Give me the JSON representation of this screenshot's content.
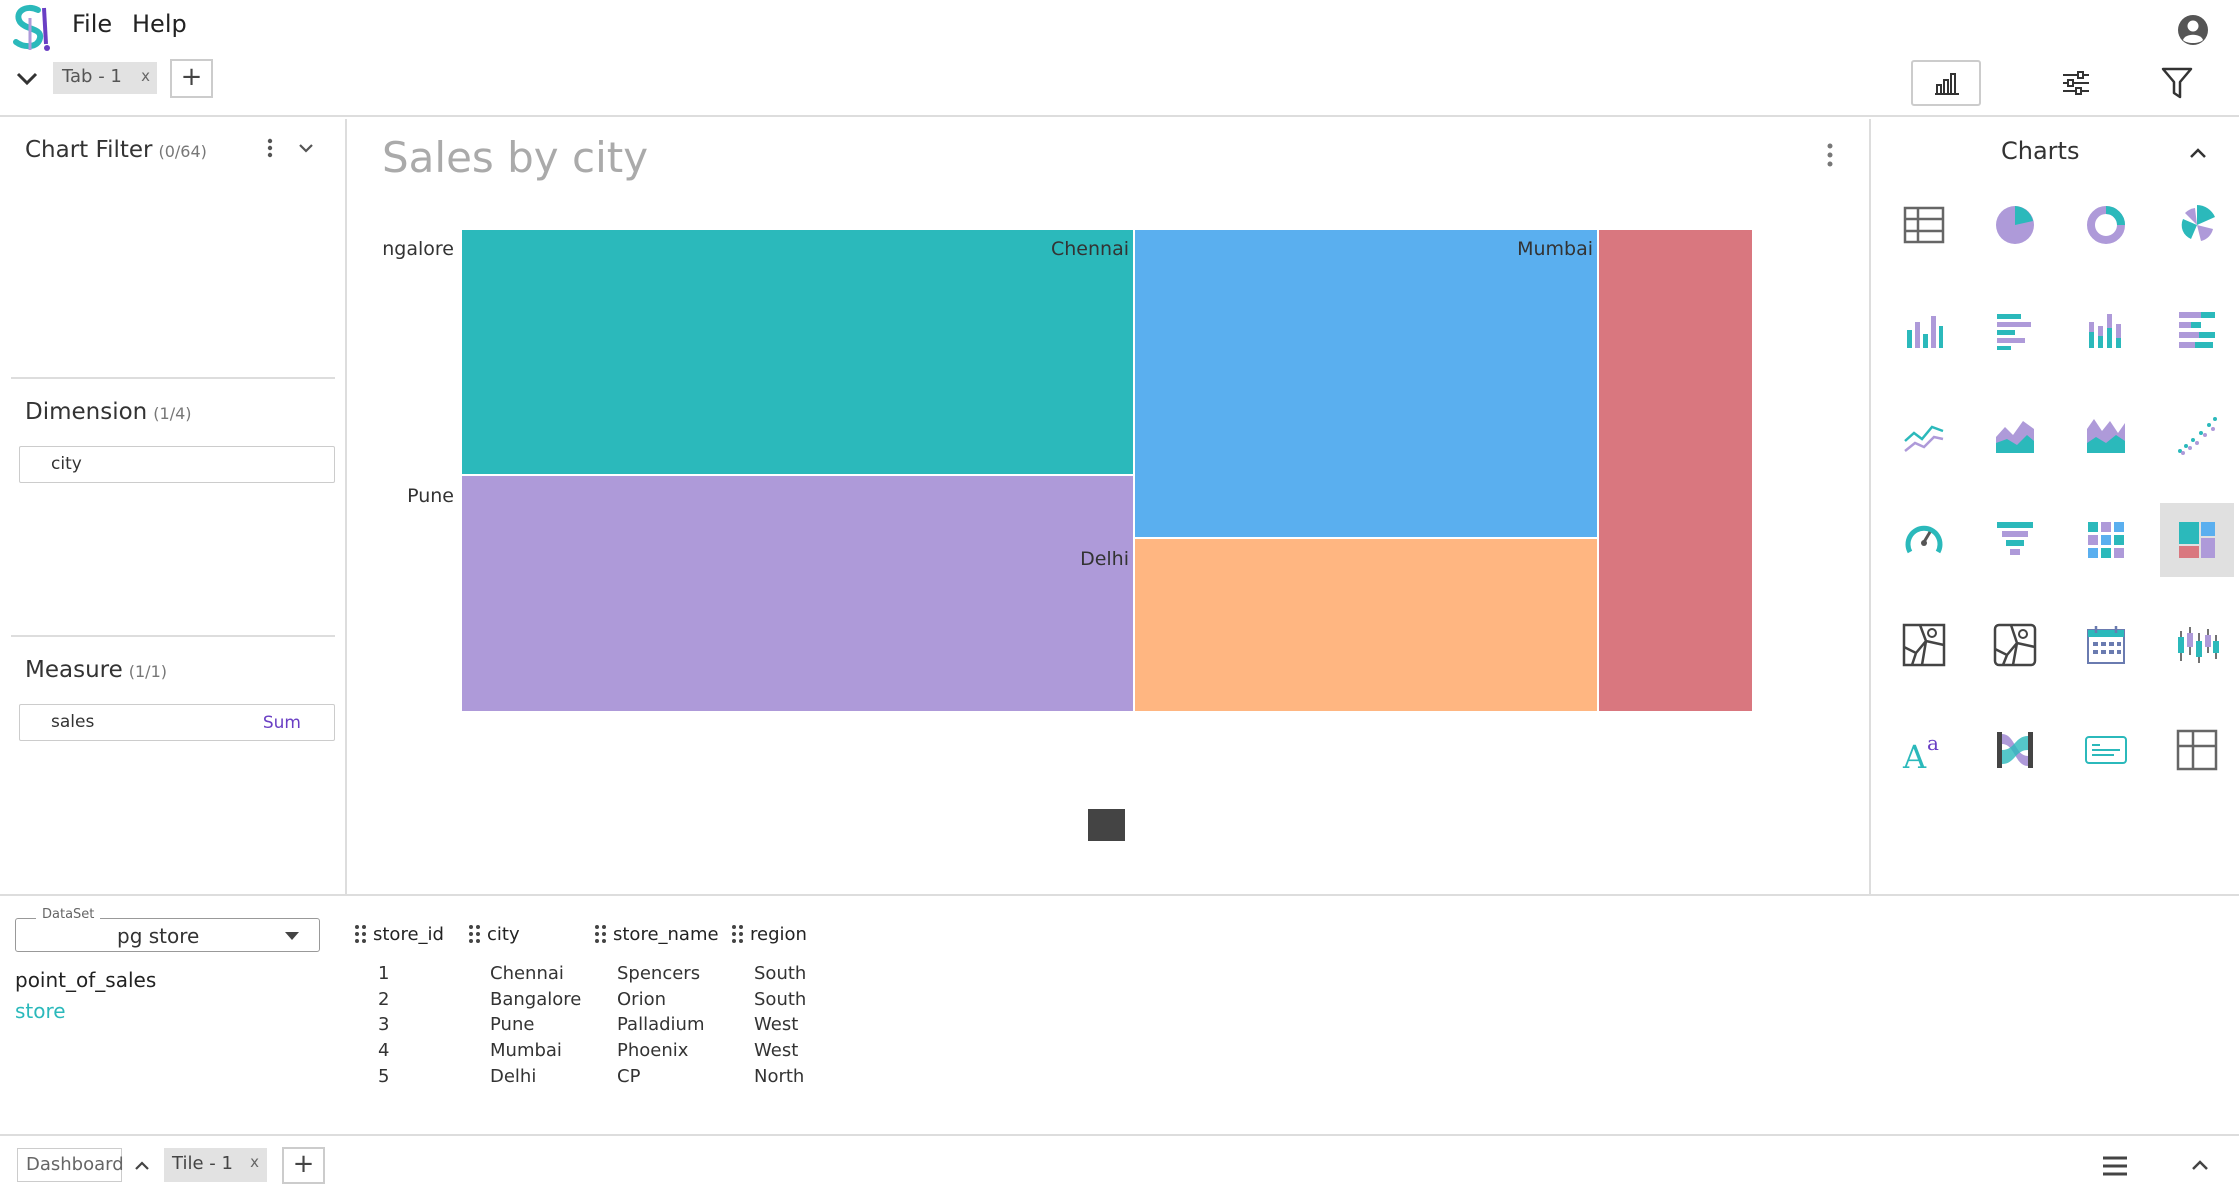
{
  "menu": {
    "file": "File",
    "help": "Help"
  },
  "tabs": [
    {
      "label": "Tab - 1",
      "close": "x"
    }
  ],
  "add_tab": "+",
  "left": {
    "chart_filter": {
      "title": "Chart Filter",
      "count": "(0/64)"
    },
    "dimension": {
      "title": "Dimension",
      "count": "(1/4)",
      "fields": [
        "city"
      ]
    },
    "measure": {
      "title": "Measure",
      "count": "(1/1)",
      "fields": [
        {
          "name": "sales",
          "agg": "Sum"
        }
      ]
    }
  },
  "chart": {
    "title": "Sales by city"
  },
  "chart_data": {
    "type": "treemap",
    "title": "Sales by city",
    "items": [
      {
        "label": "Chennai",
        "color": "#2bb9bb"
      },
      {
        "label": "Pune",
        "color": "#ae9ad9"
      },
      {
        "label": "Mumbai",
        "color": "#5aafef"
      },
      {
        "label": "Delhi",
        "color": "#ffb681"
      },
      {
        "label": "Bangalore",
        "color": "#d9777f",
        "shown_as": "ngalore"
      }
    ]
  },
  "palette": {
    "title": "Charts"
  },
  "dataset": {
    "label": "DataSet",
    "value": "pg store",
    "tables": [
      "point_of_sales",
      "store"
    ],
    "active_table": "store"
  },
  "table": {
    "columns": [
      "store_id",
      "city",
      "store_name",
      "region"
    ],
    "rows": [
      [
        "1",
        "Chennai",
        "Spencers",
        "South"
      ],
      [
        "2",
        "Bangalore",
        "Orion",
        "South"
      ],
      [
        "3",
        "Pune",
        "Palladium",
        "West"
      ],
      [
        "4",
        "Mumbai",
        "Phoenix",
        "West"
      ],
      [
        "5",
        "Delhi",
        "CP",
        "North"
      ]
    ]
  },
  "footer": {
    "dashboard": "Dashboard",
    "tile": "Tile - 1",
    "close": "x",
    "add": "+"
  },
  "colors": {
    "accent": "#2bb9bb",
    "purple": "#6a3fc4"
  }
}
